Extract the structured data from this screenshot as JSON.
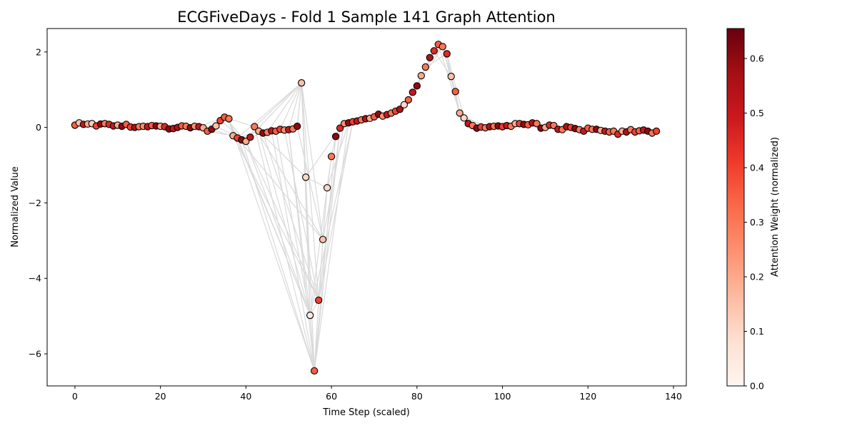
{
  "chart_data": {
    "type": "scatter",
    "title": "ECGFiveDays - Fold 1 Sample 141 Graph Attention",
    "xlabel": "Time Step (scaled)",
    "ylabel": "Normalized Value",
    "xlim": [
      -6.5,
      143
    ],
    "ylim": [
      -6.85,
      2.62
    ],
    "xticks": [
      0,
      20,
      40,
      60,
      80,
      100,
      120,
      140
    ],
    "xtick_labels": [
      "0",
      "20",
      "40",
      "60",
      "80",
      "100",
      "120",
      "140"
    ],
    "yticks": [
      -6,
      -4,
      -2,
      0,
      2
    ],
    "ytick_labels": [
      "−6",
      "−4",
      "−2",
      "0",
      "2"
    ],
    "grid": false,
    "colorbar": {
      "label": "Attention Weight (normalized)",
      "colormap": "Reds",
      "range": [
        0,
        0.655
      ],
      "ticks": [
        0,
        0.1,
        0.2,
        0.3,
        0.4,
        0.5,
        0.6
      ],
      "tick_labels": [
        "0.0",
        "0.1",
        "0.2",
        "0.3",
        "0.4",
        "0.5",
        "0.6"
      ]
    },
    "edge_color": "#d9d9d9",
    "points": {
      "x": [
        0,
        1,
        2,
        3,
        4,
        5,
        6,
        7,
        8,
        9,
        10,
        11,
        12,
        13,
        14,
        15,
        16,
        17,
        18,
        19,
        20,
        21,
        22,
        23,
        24,
        25,
        26,
        27,
        28,
        29,
        30,
        31,
        32,
        33,
        34,
        35,
        36,
        37,
        38,
        39,
        40,
        41,
        42,
        43,
        44,
        45,
        46,
        47,
        48,
        49,
        50,
        51,
        52,
        53,
        54,
        55,
        56,
        57,
        58,
        59,
        60,
        61,
        62,
        63,
        64,
        65,
        66,
        67,
        68,
        69,
        70,
        71,
        72,
        73,
        74,
        75,
        76,
        77,
        78,
        79,
        80,
        81,
        82,
        83,
        84,
        85,
        86,
        87,
        88,
        89,
        90,
        91,
        92,
        93,
        94,
        95,
        96,
        97,
        98,
        99,
        100,
        101,
        102,
        103,
        104,
        105,
        106,
        107,
        108,
        109,
        110,
        111,
        112,
        113,
        114,
        115,
        116,
        117,
        118,
        119,
        120,
        121,
        122,
        123,
        124,
        125,
        126,
        127,
        128,
        129,
        130,
        131,
        132,
        133,
        134,
        135,
        136
      ],
      "y": [
        0.06,
        0.12,
        0.08,
        0.09,
        0.1,
        0.04,
        0.09,
        0.1,
        0.08,
        0.04,
        0.06,
        0.03,
        0.08,
        0.01,
        0.0,
        0.02,
        0.03,
        0.02,
        0.05,
        0.04,
        0.03,
        0.02,
        -0.04,
        -0.03,
        0.0,
        0.04,
        0.03,
        -0.01,
        0.03,
        0.02,
        -0.01,
        -0.1,
        -0.05,
        0.04,
        0.18,
        0.27,
        0.23,
        -0.22,
        -0.28,
        -0.33,
        -0.37,
        -0.26,
        0.02,
        -0.1,
        -0.15,
        -0.13,
        -0.09,
        -0.1,
        -0.05,
        -0.07,
        -0.06,
        -0.04,
        0.03,
        1.18,
        -1.32,
        -4.98,
        -6.45,
        -4.58,
        -2.97,
        -1.6,
        -0.77,
        -0.24,
        -0.02,
        0.1,
        0.12,
        0.15,
        0.17,
        0.2,
        0.23,
        0.24,
        0.28,
        0.35,
        0.3,
        0.34,
        0.38,
        0.43,
        0.48,
        0.6,
        0.73,
        0.93,
        1.1,
        1.37,
        1.6,
        1.85,
        2.03,
        2.2,
        2.14,
        1.95,
        1.35,
        0.95,
        0.38,
        0.25,
        0.1,
        0.05,
        -0.02,
        0.01,
        -0.01,
        0.02,
        0.03,
        0.04,
        0.02,
        0.05,
        0.03,
        0.1,
        0.1,
        0.08,
        0.07,
        0.12,
        0.1,
        -0.02,
        0.0,
        0.06,
        0.05,
        -0.05,
        -0.06,
        0.02,
        0.0,
        -0.03,
        -0.06,
        -0.1,
        -0.02,
        -0.05,
        -0.05,
        -0.08,
        -0.1,
        -0.12,
        -0.1,
        -0.18,
        -0.1,
        -0.12,
        -0.06,
        -0.12,
        -0.09,
        -0.07,
        -0.1,
        -0.15,
        -0.1
      ],
      "attention": [
        0.35,
        0.15,
        0.5,
        0.2,
        0.12,
        0.4,
        0.6,
        0.3,
        0.45,
        0.5,
        0.2,
        0.6,
        0.35,
        0.4,
        0.55,
        0.3,
        0.25,
        0.5,
        0.35,
        0.6,
        0.2,
        0.45,
        0.6,
        0.5,
        0.55,
        0.35,
        0.3,
        0.6,
        0.25,
        0.5,
        0.2,
        0.35,
        0.6,
        0.15,
        0.4,
        0.35,
        0.3,
        0.2,
        0.4,
        0.6,
        0.2,
        0.5,
        0.3,
        0.2,
        0.6,
        0.3,
        0.5,
        0.35,
        0.4,
        0.25,
        0.5,
        0.3,
        0.6,
        0.15,
        0.1,
        0.05,
        0.35,
        0.4,
        0.15,
        0.1,
        0.3,
        0.6,
        0.45,
        0.25,
        0.6,
        0.4,
        0.5,
        0.3,
        0.55,
        0.2,
        0.35,
        0.6,
        0.25,
        0.5,
        0.3,
        0.4,
        0.55,
        0.1,
        0.35,
        0.5,
        0.6,
        0.2,
        0.3,
        0.55,
        0.45,
        0.35,
        0.3,
        0.45,
        0.15,
        0.35,
        0.2,
        0.1,
        0.5,
        0.3,
        0.6,
        0.4,
        0.3,
        0.55,
        0.3,
        0.6,
        0.4,
        0.5,
        0.3,
        0.2,
        0.4,
        0.6,
        0.35,
        0.55,
        0.3,
        0.6,
        0.2,
        0.45,
        0.3,
        0.5,
        0.3,
        0.55,
        0.4,
        0.6,
        0.3,
        0.5,
        0.35,
        0.3,
        0.6,
        0.2,
        0.5,
        0.35,
        0.3,
        0.45,
        0.2,
        0.55,
        0.3,
        0.4,
        0.35,
        0.5,
        0.6,
        0.3,
        0.4
      ]
    },
    "edges": [
      [
        53,
        38
      ],
      [
        53,
        40
      ],
      [
        53,
        42
      ],
      [
        53,
        45
      ],
      [
        53,
        48
      ],
      [
        53,
        50
      ],
      [
        53,
        56
      ],
      [
        53,
        57
      ],
      [
        53,
        58
      ],
      [
        55,
        36
      ],
      [
        55,
        38
      ],
      [
        55,
        40
      ],
      [
        55,
        43
      ],
      [
        55,
        47
      ],
      [
        55,
        50
      ],
      [
        55,
        53
      ],
      [
        55,
        60
      ],
      [
        56,
        36
      ],
      [
        56,
        39
      ],
      [
        56,
        42
      ],
      [
        56,
        46
      ],
      [
        56,
        50
      ],
      [
        56,
        61
      ],
      [
        56,
        62
      ],
      [
        56,
        64
      ],
      [
        57,
        37
      ],
      [
        57,
        40
      ],
      [
        57,
        44
      ],
      [
        57,
        49
      ],
      [
        57,
        62
      ],
      [
        57,
        65
      ],
      [
        58,
        38
      ],
      [
        58,
        42
      ],
      [
        58,
        52
      ],
      [
        58,
        63
      ],
      [
        54,
        62
      ],
      [
        54,
        59
      ],
      [
        59,
        64
      ],
      [
        54,
        42
      ],
      [
        55,
        65
      ],
      [
        57,
        55
      ],
      [
        86,
        80
      ],
      [
        86,
        82
      ],
      [
        86,
        83
      ],
      [
        86,
        84
      ],
      [
        86,
        88
      ],
      [
        86,
        89
      ],
      [
        86,
        90
      ],
      [
        85,
        81
      ],
      [
        85,
        90
      ],
      [
        87,
        82
      ],
      [
        87,
        91
      ],
      [
        84,
        88
      ],
      [
        30,
        36
      ],
      [
        32,
        38
      ],
      [
        34,
        40
      ],
      [
        36,
        42
      ],
      [
        33,
        39
      ],
      [
        29,
        35
      ],
      [
        31,
        37
      ],
      [
        35,
        40
      ],
      [
        37,
        41
      ],
      [
        38,
        43
      ],
      [
        39,
        44
      ],
      [
        90,
        96
      ],
      [
        91,
        97
      ],
      [
        92,
        98
      ]
    ]
  }
}
